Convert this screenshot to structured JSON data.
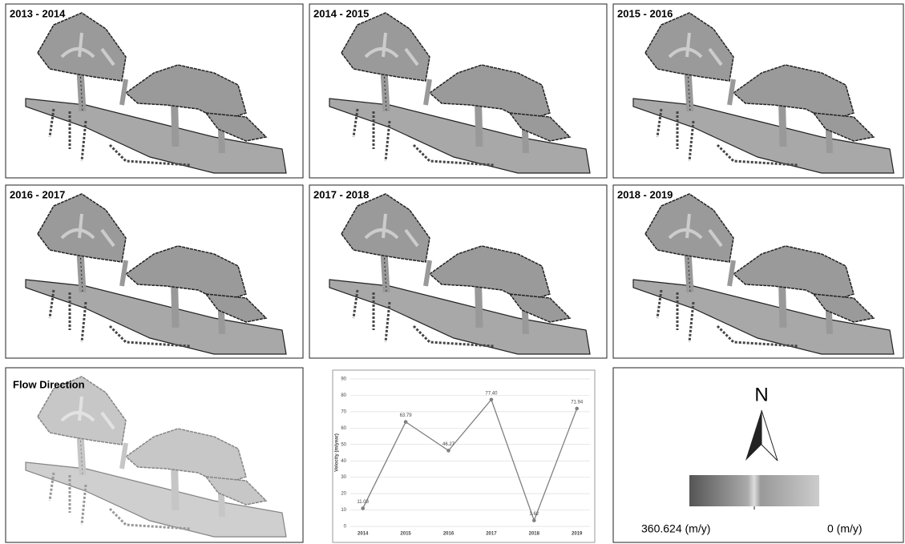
{
  "panels": [
    {
      "title": "2013 - 2014"
    },
    {
      "title": "2014 - 2015"
    },
    {
      "title": "2015 - 2016"
    },
    {
      "title": "2016 - 2017"
    },
    {
      "title": "2017 - 2018"
    },
    {
      "title": "2018 - 2019"
    }
  ],
  "flow_direction": {
    "title": "Flow Direction"
  },
  "north": "N",
  "legend": {
    "high": "360.624 (m/y)",
    "low": "0 (m/y)"
  },
  "chart_data": {
    "type": "line",
    "y_label": "Velocity (m/year)",
    "categories": [
      "2014",
      "2015",
      "2016",
      "2017",
      "2018",
      "2019"
    ],
    "values": [
      11.03,
      63.79,
      46.27,
      77.4,
      3.62,
      71.94
    ],
    "value_labels": [
      "11.03",
      "63.79",
      "46.27",
      "77.40",
      "3.62",
      "71.94"
    ],
    "color": "#7f7f7f",
    "ylim": [
      0,
      90
    ],
    "yticks": [
      0,
      10,
      20,
      30,
      40,
      50,
      60,
      70,
      80,
      90
    ],
    "grid": true
  }
}
